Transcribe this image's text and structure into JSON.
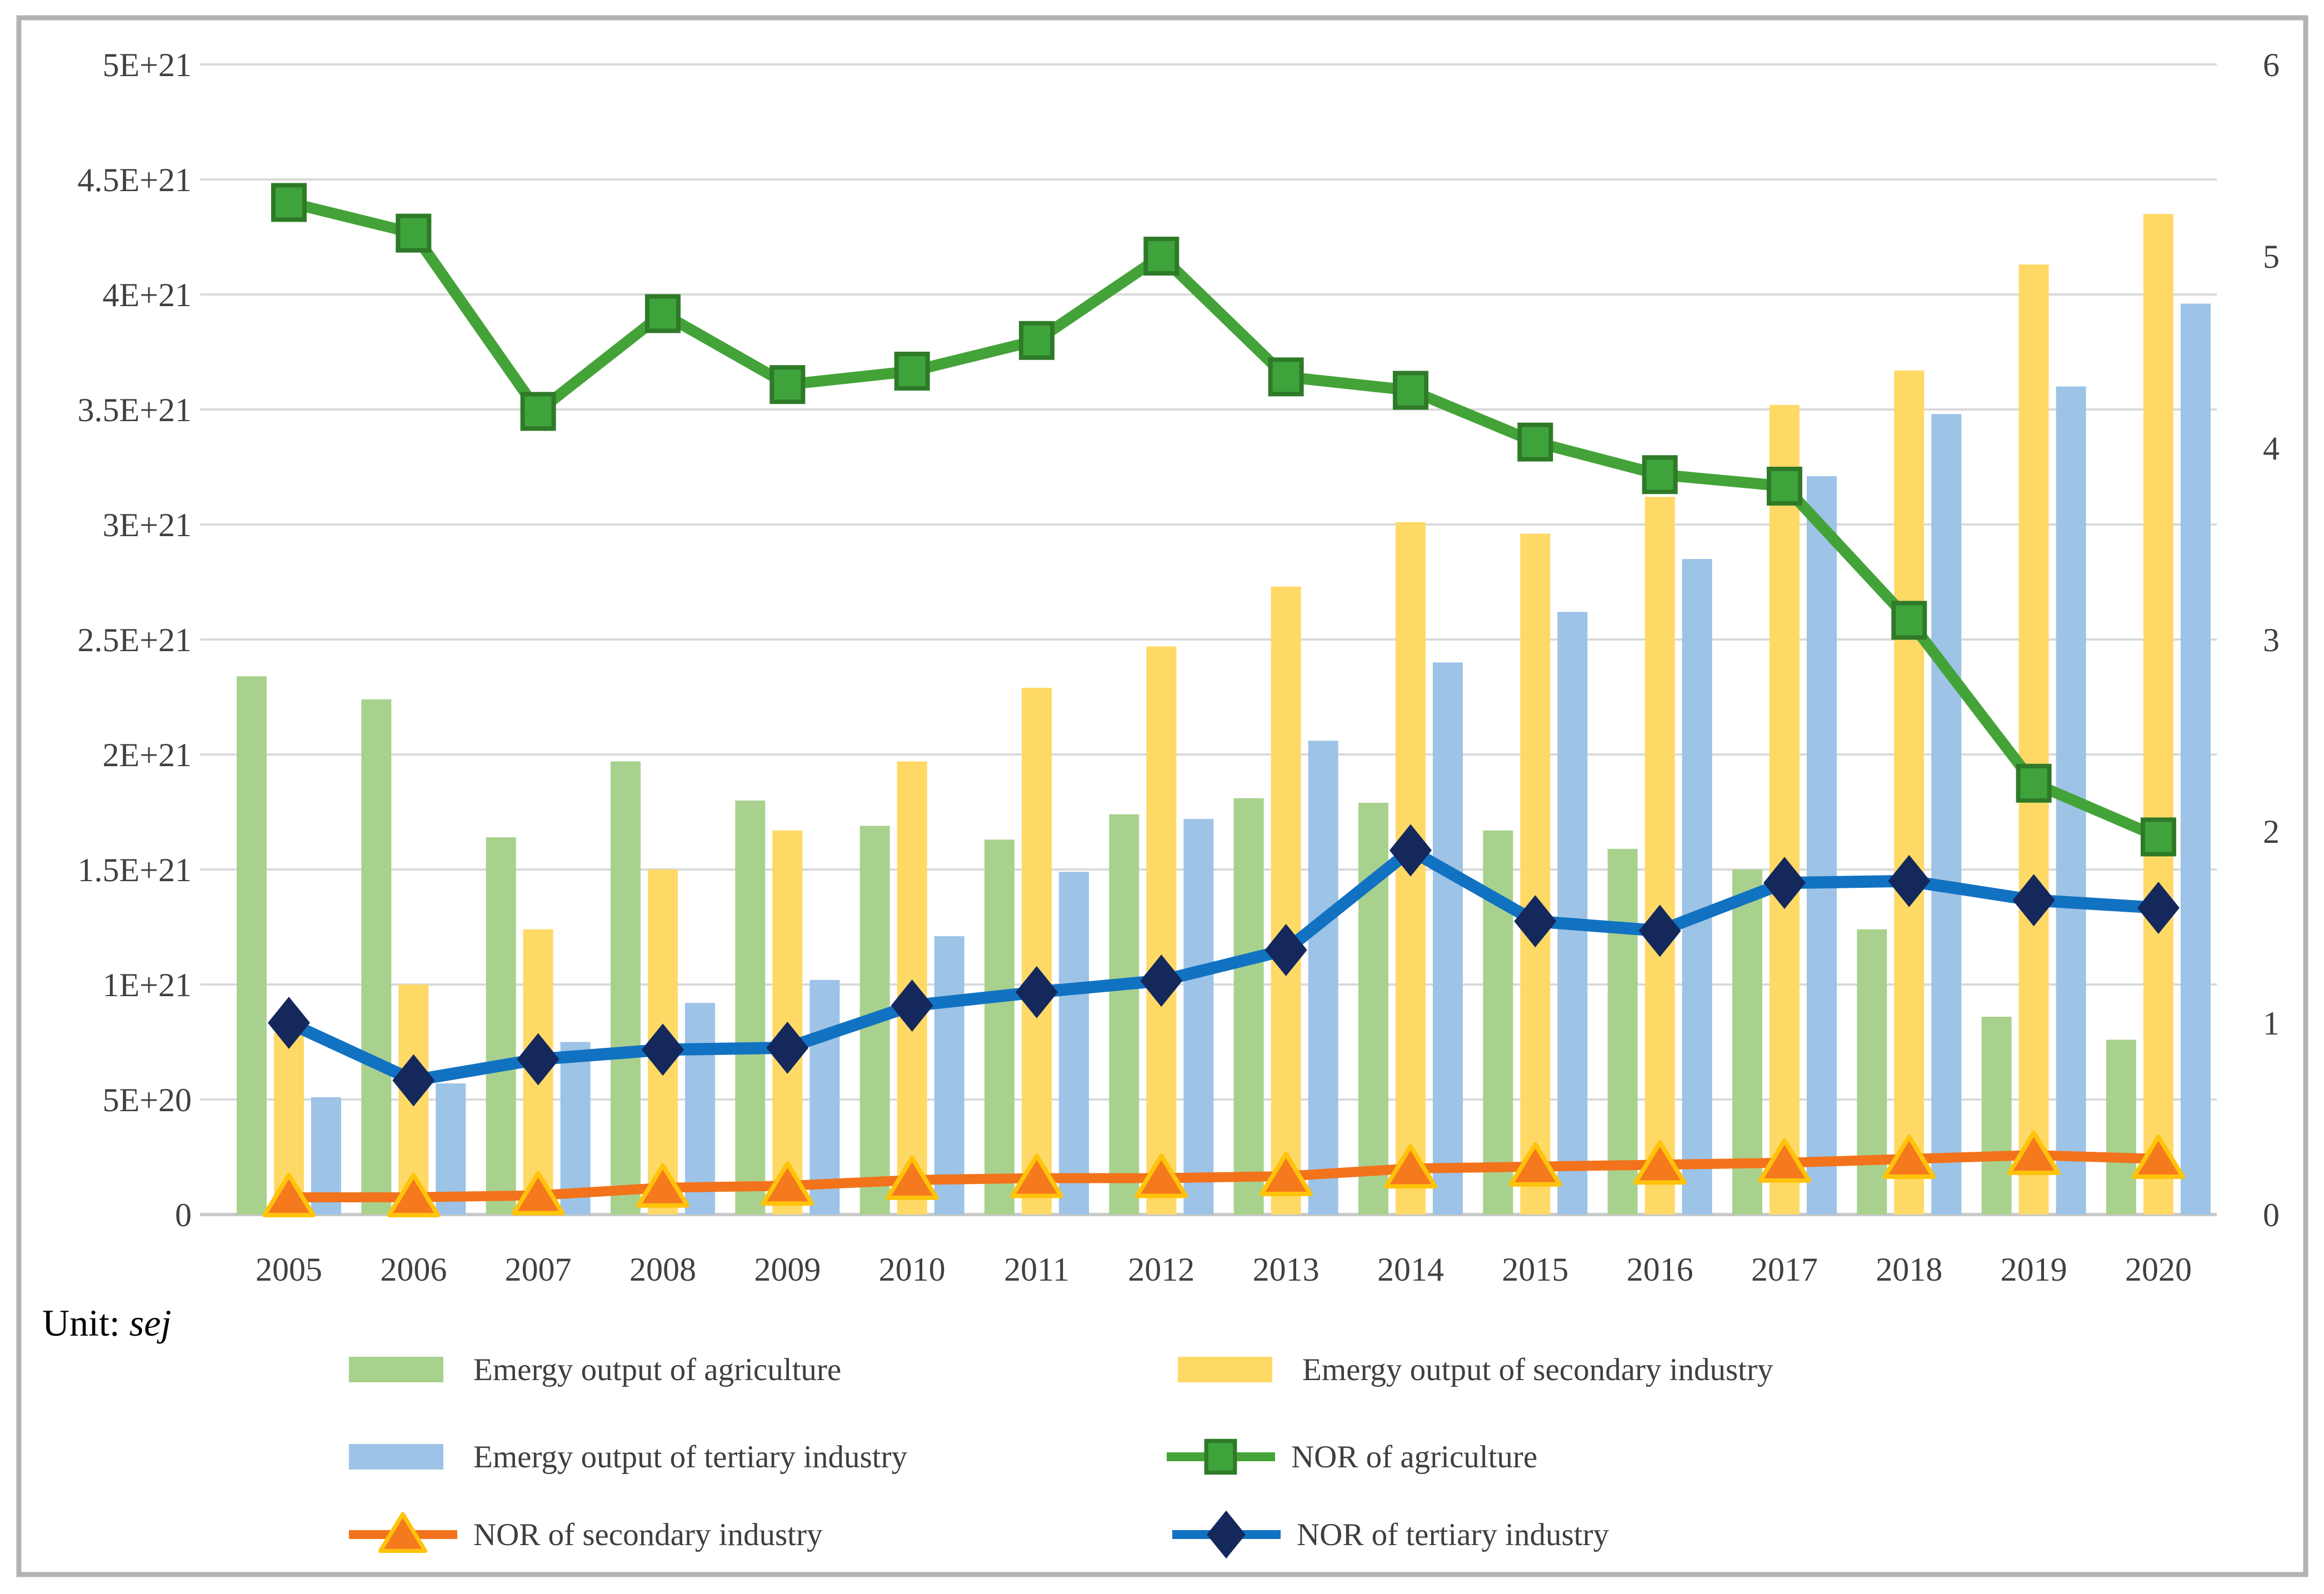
{
  "unit_label": {
    "prefix": "Unit: ",
    "unit": "sej"
  },
  "colors": {
    "bar_agriculture": "#A9D18E",
    "bar_secondary": "#FFD966",
    "bar_tertiary": "#9DC3E6",
    "line_agriculture": "#44A338",
    "line_agriculture_marker_fill": "#3FA33C",
    "line_agriculture_marker_stroke": "#2E7A28",
    "line_secondary": "#F2731B",
    "line_secondary_marker_fill": "#F5791D",
    "line_secondary_marker_stroke": "#FFC30B",
    "line_tertiary": "#1272C2",
    "line_tertiary_marker_fill": "#14285C",
    "gridline": "#D9D9D9",
    "baseline": "#C9C9C9",
    "border": "#B3B3B3",
    "axis_text": "#404040"
  },
  "chart_data": {
    "type": "bar+line combo (dual axis)",
    "categories": [
      "2005",
      "2006",
      "2007",
      "2008",
      "2009",
      "2010",
      "2011",
      "2012",
      "2013",
      "2014",
      "2015",
      "2016",
      "2017",
      "2018",
      "2019",
      "2020"
    ],
    "bar_series": [
      {
        "name": "Emergy output of agriculture",
        "axis": "left",
        "unit": "sej",
        "color": "#A9D18E",
        "values_e21": [
          2.34,
          2.24,
          1.64,
          1.97,
          1.8,
          1.69,
          1.63,
          1.74,
          1.81,
          1.79,
          1.67,
          1.59,
          1.5,
          1.24,
          0.86,
          0.76
        ]
      },
      {
        "name": "Emergy output of secondary industry",
        "axis": "left",
        "unit": "sej",
        "color": "#FFD966",
        "values_e21": [
          0.79,
          1.0,
          1.24,
          1.5,
          1.67,
          1.97,
          2.29,
          2.47,
          2.73,
          3.01,
          2.96,
          3.12,
          3.52,
          3.67,
          4.13,
          4.35
        ]
      },
      {
        "name": "Emergy output of tertiary industry",
        "axis": "left",
        "unit": "sej",
        "color": "#9DC3E6",
        "values_e21": [
          0.51,
          0.57,
          0.75,
          0.92,
          1.02,
          1.21,
          1.49,
          1.72,
          2.06,
          2.4,
          2.62,
          2.85,
          3.21,
          3.48,
          3.6,
          3.96
        ]
      }
    ],
    "line_series": [
      {
        "name": "NOR of agriculture",
        "axis": "right",
        "color": "#44A338",
        "marker": "square",
        "marker_fill": "#3FA33C",
        "marker_stroke": "#2E7A28",
        "values": [
          5.28,
          5.12,
          4.19,
          4.7,
          4.33,
          4.4,
          4.56,
          5.0,
          4.37,
          4.3,
          4.03,
          3.86,
          3.8,
          3.1,
          2.25,
          1.97
        ]
      },
      {
        "name": "NOR of tertiary industry",
        "axis": "right",
        "color": "#1272C2",
        "marker": "diamond",
        "marker_fill": "#14285C",
        "marker_stroke": "#14285C",
        "values": [
          1.0,
          0.7,
          0.81,
          0.86,
          0.87,
          1.09,
          1.16,
          1.22,
          1.38,
          1.9,
          1.53,
          1.48,
          1.73,
          1.74,
          1.64,
          1.6
        ]
      },
      {
        "name": "NOR of secondary industry",
        "axis": "right",
        "color": "#F2731B",
        "marker": "triangle",
        "marker_fill": "#F5791D",
        "marker_stroke": "#FFC30B",
        "values": [
          0.09,
          0.09,
          0.1,
          0.14,
          0.15,
          0.18,
          0.19,
          0.19,
          0.2,
          0.24,
          0.25,
          0.26,
          0.27,
          0.29,
          0.31,
          0.29
        ]
      }
    ],
    "left_axis": {
      "min": 0,
      "max_e21": 5,
      "ticks": [
        {
          "v": 0,
          "label": "0"
        },
        {
          "v": 0.5,
          "label": "5E+20"
        },
        {
          "v": 1,
          "label": "1E+21"
        },
        {
          "v": 1.5,
          "label": "1.5E+21"
        },
        {
          "v": 2,
          "label": "2E+21"
        },
        {
          "v": 2.5,
          "label": "2.5E+21"
        },
        {
          "v": 3,
          "label": "3E+21"
        },
        {
          "v": 3.5,
          "label": "3.5E+21"
        },
        {
          "v": 4,
          "label": "4E+21"
        },
        {
          "v": 4.5,
          "label": "4.5E+21"
        },
        {
          "v": 5,
          "label": "5E+21"
        }
      ]
    },
    "right_axis": {
      "min": 0,
      "max": 6,
      "ticks": [
        "0",
        "1",
        "2",
        "3",
        "4",
        "5",
        "6"
      ]
    },
    "grid": "horizontal only",
    "legend_position": "bottom, two columns, three rows"
  },
  "legend": {
    "items": [
      {
        "label": "Emergy output of agriculture",
        "key": "bar",
        "color": "#A9D18E"
      },
      {
        "label": "Emergy output of secondary industry",
        "key": "bar",
        "color": "#FFD966"
      },
      {
        "label": "Emergy output of tertiary industry",
        "key": "bar",
        "color": "#9DC3E6"
      },
      {
        "label": "NOR of agriculture",
        "key": "line",
        "color": "#44A338",
        "marker": "square",
        "marker_fill": "#3FA33C",
        "marker_stroke": "#2E7A28"
      },
      {
        "label": "NOR of secondary industry",
        "key": "line",
        "color": "#F2731B",
        "marker": "triangle",
        "marker_fill": "#F5791D",
        "marker_stroke": "#FFC30B"
      },
      {
        "label": "NOR of tertiary industry",
        "key": "line",
        "color": "#1272C2",
        "marker": "diamond",
        "marker_fill": "#14285C",
        "marker_stroke": "#14285C"
      }
    ]
  }
}
